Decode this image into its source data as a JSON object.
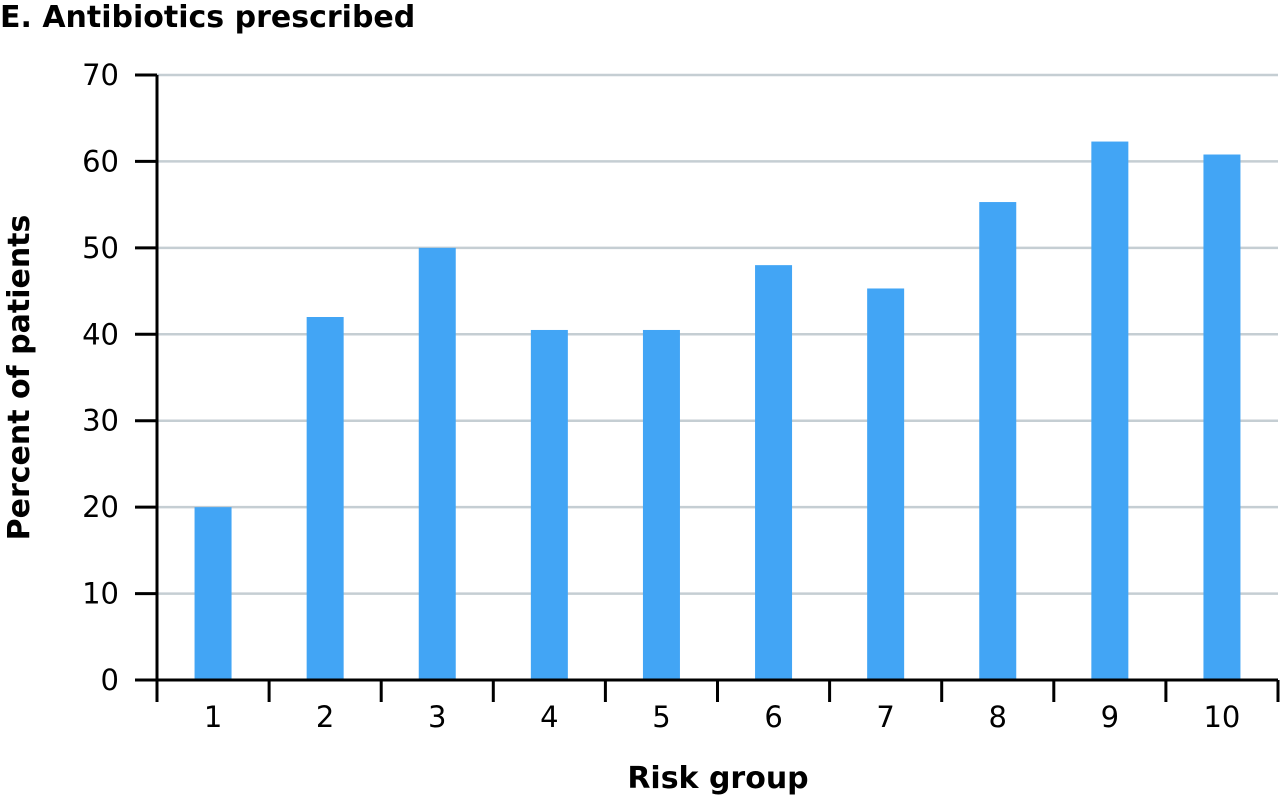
{
  "chart_data": {
    "type": "bar",
    "title": "E. Antibiotics prescribed",
    "xlabel": "Risk group",
    "ylabel": "Percent of patients",
    "categories": [
      "1",
      "2",
      "3",
      "4",
      "5",
      "6",
      "7",
      "8",
      "9",
      "10"
    ],
    "values": [
      20,
      42,
      50,
      40.5,
      40.5,
      48,
      45.3,
      55.3,
      62.3,
      60.8
    ],
    "ylim": [
      0,
      70
    ],
    "yticks": [
      "0",
      "10",
      "20",
      "30",
      "40",
      "50",
      "60",
      "70"
    ],
    "grid": true,
    "bar_color": "#42a5f5",
    "grid_color": "#c5ced3"
  }
}
